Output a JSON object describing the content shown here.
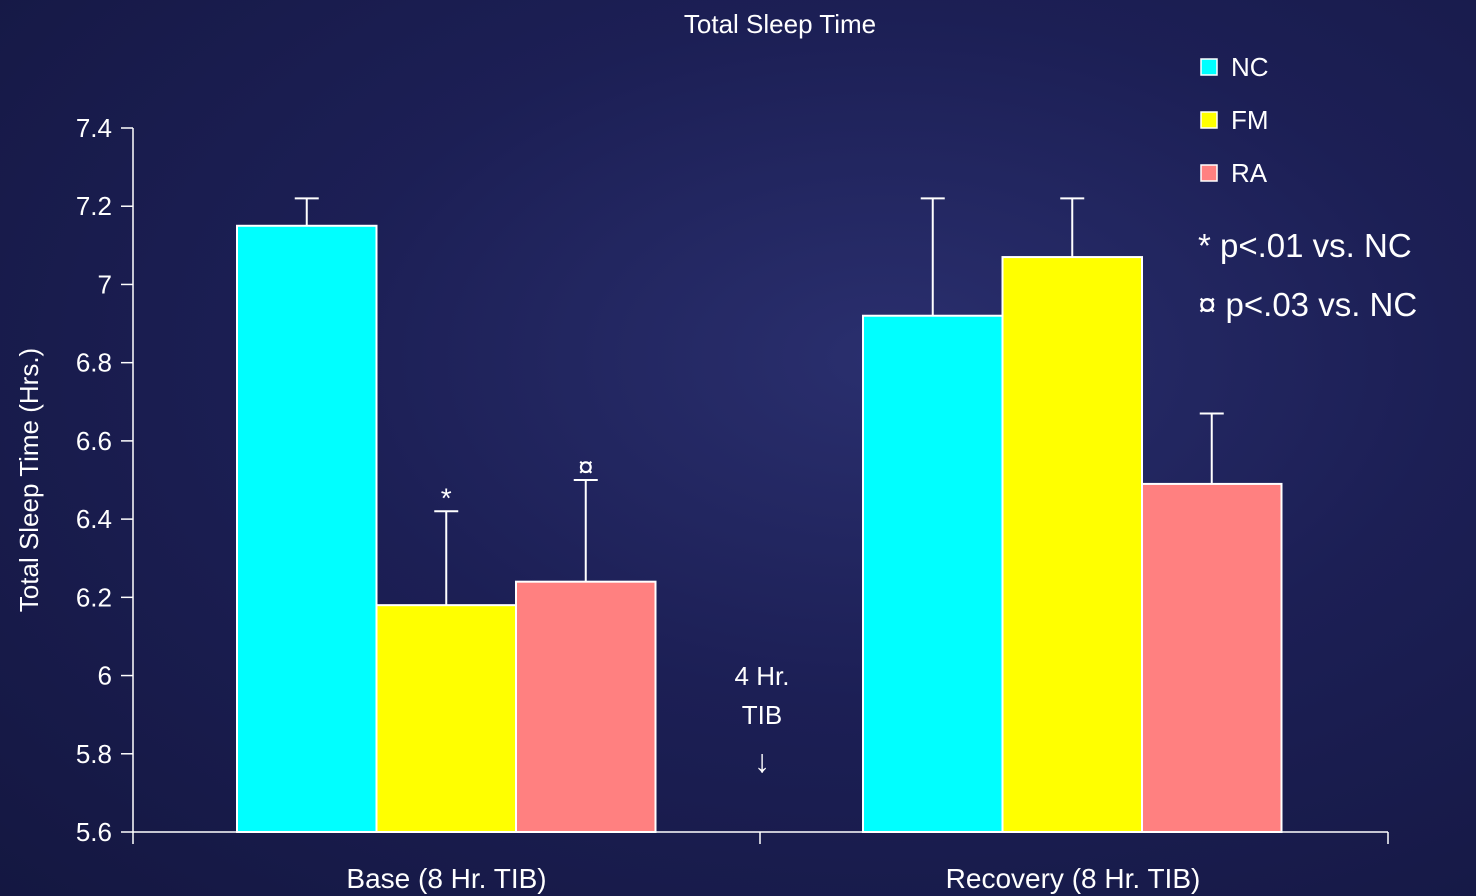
{
  "chart_data": {
    "type": "bar",
    "title": "Total Sleep Time",
    "ylabel": "Total Sleep Time (Hrs.)",
    "xlabel": "",
    "ylim": [
      5.6,
      7.4
    ],
    "yticks": [
      "7.4",
      "7.2",
      "7",
      "6.8",
      "6.6",
      "6.4",
      "6.2",
      "6",
      "5.8",
      "5.6"
    ],
    "categories": [
      "Base (8 Hr. TIB)",
      "Recovery (8 Hr. TIB)"
    ],
    "series": [
      {
        "name": "NC",
        "color": "#00ffff",
        "values": [
          7.15,
          6.92
        ],
        "error_upper": [
          7.22,
          7.22
        ],
        "markers": [
          "",
          ""
        ]
      },
      {
        "name": "FM",
        "color": "#ffff00",
        "values": [
          6.18,
          7.07
        ],
        "error_upper": [
          6.42,
          7.22
        ],
        "markers": [
          "*",
          ""
        ]
      },
      {
        "name": "RA",
        "color": "#ff8080",
        "values": [
          6.24,
          6.49
        ],
        "error_upper": [
          6.5,
          6.67
        ],
        "markers": [
          "¤",
          ""
        ]
      }
    ],
    "annotations": {
      "middle_line1": "4 Hr.",
      "middle_line2": "TIB",
      "middle_arrow": "↓",
      "note1": "* p<.01 vs. NC",
      "note2": "¤ p<.03 vs. NC"
    },
    "legend_position": "top-right",
    "grid": false
  }
}
